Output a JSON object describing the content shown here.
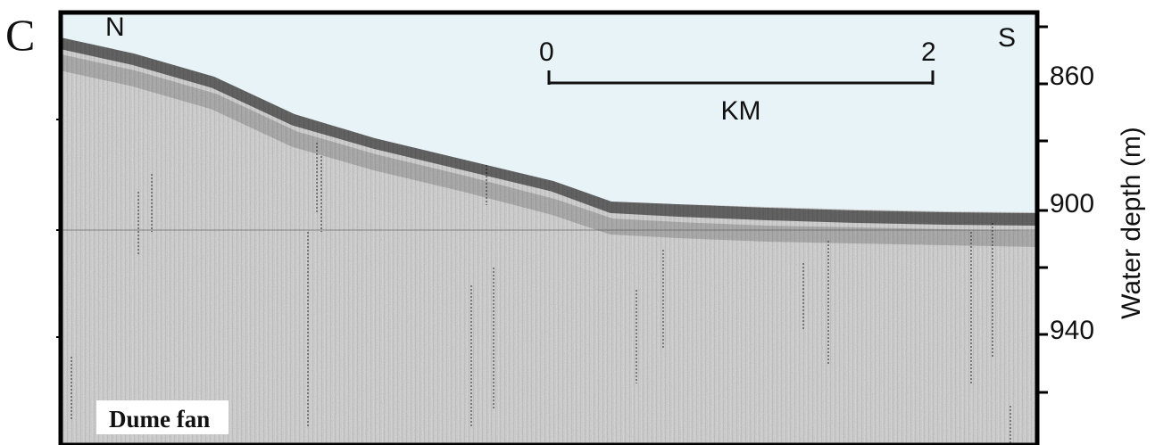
{
  "figure": {
    "panel_label": "C",
    "profile_ends": {
      "north": "N",
      "south": "S"
    },
    "scale_bar": {
      "start": "0",
      "end": "2",
      "unit": "KM"
    },
    "depth_axis": {
      "title": "Water depth (m)",
      "tick_labels": [
        "860",
        "900",
        "940"
      ]
    },
    "location_label": "Dume fan"
  },
  "colors": {
    "water": "#e8f3f8",
    "frame": "#000000",
    "seismic_base": "#c9c9c9"
  }
}
